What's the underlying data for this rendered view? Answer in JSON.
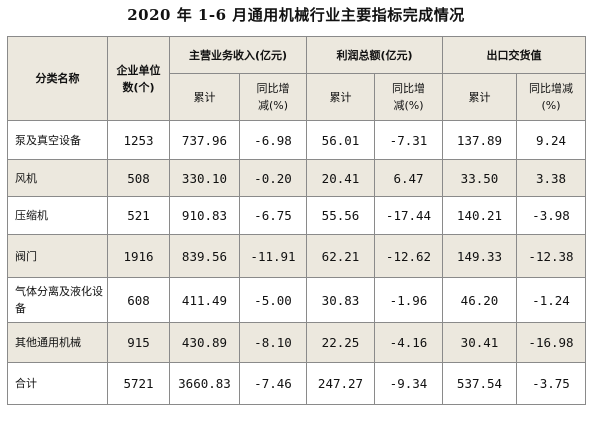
{
  "title": "2020 年 1-6 月通用机械行业主要指标完成情况",
  "headers": {
    "category": "分类名称",
    "units": "企业单位数(个)",
    "revenue": "主营业务收入(亿元)",
    "profit": "利润总额(亿元)",
    "export": "出口交货值",
    "cumulative": "累计",
    "yoy": "同比增减(%)"
  },
  "rows": [
    {
      "name": "泵及真空设备",
      "units": "1253",
      "rev": "737.96",
      "rev_yoy": "-6.98",
      "profit": "56.01",
      "profit_yoy": "-7.31",
      "export": "137.89",
      "export_yoy": "9.24"
    },
    {
      "name": "风机",
      "units": "508",
      "rev": "330.10",
      "rev_yoy": "-0.20",
      "profit": "20.41",
      "profit_yoy": "6.47",
      "export": "33.50",
      "export_yoy": "3.38"
    },
    {
      "name": "压缩机",
      "units": "521",
      "rev": "910.83",
      "rev_yoy": "-6.75",
      "profit": "55.56",
      "profit_yoy": "-17.44",
      "export": "140.21",
      "export_yoy": "-3.98"
    },
    {
      "name": "阀门",
      "units": "1916",
      "rev": "839.56",
      "rev_yoy": "-11.91",
      "profit": "62.21",
      "profit_yoy": "-12.62",
      "export": "149.33",
      "export_yoy": "-12.38"
    },
    {
      "name": "气体分离及液化设备",
      "units": "608",
      "rev": "411.49",
      "rev_yoy": "-5.00",
      "profit": "30.83",
      "profit_yoy": "-1.96",
      "export": "46.20",
      "export_yoy": "-1.24"
    },
    {
      "name": "其他通用机械",
      "units": "915",
      "rev": "430.89",
      "rev_yoy": "-8.10",
      "profit": "22.25",
      "profit_yoy": "-4.16",
      "export": "30.41",
      "export_yoy": "-16.98"
    },
    {
      "name": "合计",
      "units": "5721",
      "rev": "3660.83",
      "rev_yoy": "-7.46",
      "profit": "247.27",
      "profit_yoy": "-9.34",
      "export": "537.54",
      "export_yoy": "-3.75"
    }
  ]
}
